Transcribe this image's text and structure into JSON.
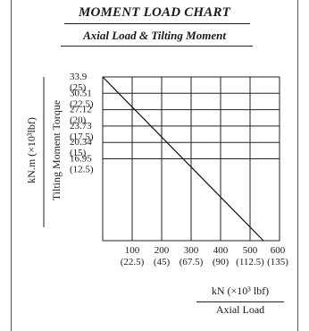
{
  "header": {
    "title": "MOMENT LOAD CHART",
    "subtitle": "Axial Load & Tilting Moment"
  },
  "chart_data": {
    "type": "line",
    "title": "MOMENT LOAD CHART",
    "subtitle": "Axial Load & Tilting Moment",
    "xlabel": "Axial Load",
    "xunit": "kN  (×10³ lbf)",
    "ylabel": "Tilting Moment Torque",
    "yunit": "kN.m  (×10³lbf)",
    "xlim": [
      0,
      600
    ],
    "ylim": [
      0,
      33.9
    ],
    "x_ticks": [
      {
        "value": 100,
        "label": "100",
        "sub": "(22.5)"
      },
      {
        "value": 200,
        "label": "200",
        "sub": "(45)"
      },
      {
        "value": 300,
        "label": "300",
        "sub": "(67.5)"
      },
      {
        "value": 400,
        "label": "400",
        "sub": "(90)"
      },
      {
        "value": 500,
        "label": "500",
        "sub": "(112.5)"
      },
      {
        "value": 600,
        "label": "600",
        "sub": "(135)"
      }
    ],
    "y_ticks": [
      {
        "value": 33.9,
        "label": "33.9",
        "sub": "(25)"
      },
      {
        "value": 30.51,
        "label": "30.51",
        "sub": "(22.5)"
      },
      {
        "value": 27.12,
        "label": "27.12",
        "sub": "(20)"
      },
      {
        "value": 23.73,
        "label": "23.73",
        "sub": "(17.5)"
      },
      {
        "value": 20.34,
        "label": "20.34",
        "sub": "(15)"
      },
      {
        "value": 16.95,
        "label": "16.95",
        "sub": "(12.5)"
      }
    ],
    "grid": true,
    "series": [
      {
        "x": [
          0,
          545
        ],
        "y": [
          33.9,
          0
        ]
      }
    ]
  }
}
